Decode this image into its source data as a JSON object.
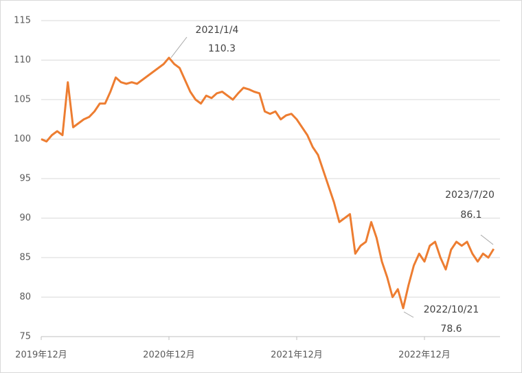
{
  "chart_data": {
    "type": "line",
    "categories": [
      "2019年12月",
      null,
      null,
      null,
      null,
      null,
      null,
      null,
      null,
      null,
      null,
      null,
      null,
      null,
      null,
      null,
      null,
      null,
      null,
      null,
      null,
      null,
      null,
      null,
      "2020年12月",
      null,
      null,
      null,
      null,
      null,
      null,
      null,
      null,
      null,
      null,
      null,
      null,
      null,
      null,
      null,
      null,
      null,
      null,
      null,
      null,
      null,
      null,
      null,
      "2021年12月",
      null,
      null,
      null,
      null,
      null,
      null,
      null,
      null,
      null,
      null,
      null,
      null,
      null,
      null,
      null,
      null,
      null,
      null,
      null,
      null,
      null,
      null,
      null,
      "2022年12月",
      null,
      null,
      null,
      null,
      null,
      null,
      null,
      null,
      null,
      null,
      null,
      null,
      null
    ],
    "series": [
      {
        "color": "#ed7d31",
        "values": [
          100.0,
          99.7,
          100.5,
          101.0,
          100.5,
          107.2,
          101.5,
          102.0,
          102.5,
          102.8,
          103.5,
          104.5,
          104.5,
          106.0,
          107.8,
          107.2,
          107.0,
          107.2,
          107.0,
          107.5,
          108.0,
          108.5,
          109.0,
          109.5,
          110.3,
          109.5,
          109.0,
          107.5,
          106.0,
          105.0,
          104.5,
          105.5,
          105.2,
          105.8,
          106.0,
          105.5,
          105.0,
          105.8,
          106.5,
          106.3,
          106.0,
          105.8,
          103.5,
          103.2,
          103.5,
          102.5,
          103.0,
          103.2,
          102.5,
          101.5,
          100.5,
          99.0,
          98.0,
          96.0,
          94.0,
          92.0,
          89.5,
          90.0,
          90.5,
          85.5,
          86.5,
          87.0,
          89.5,
          87.5,
          84.5,
          82.5,
          80.0,
          81.0,
          78.6,
          81.5,
          84.0,
          85.5,
          84.5,
          86.5,
          87.0,
          85.0,
          83.5,
          86.0,
          87.0,
          86.5,
          87.0,
          85.5,
          84.5,
          85.5,
          85.0,
          86.1
        ]
      }
    ],
    "ylim": [
      75,
      115
    ],
    "yticks": [
      75,
      80,
      85,
      90,
      95,
      100,
      105,
      110,
      115
    ],
    "grid": true,
    "annotations": [
      {
        "label": "2021/1/4",
        "value": 110.3
      },
      {
        "label": "2022/10/21",
        "value": 78.6
      },
      {
        "label": "2023/7/20",
        "value": 86.1
      }
    ]
  }
}
